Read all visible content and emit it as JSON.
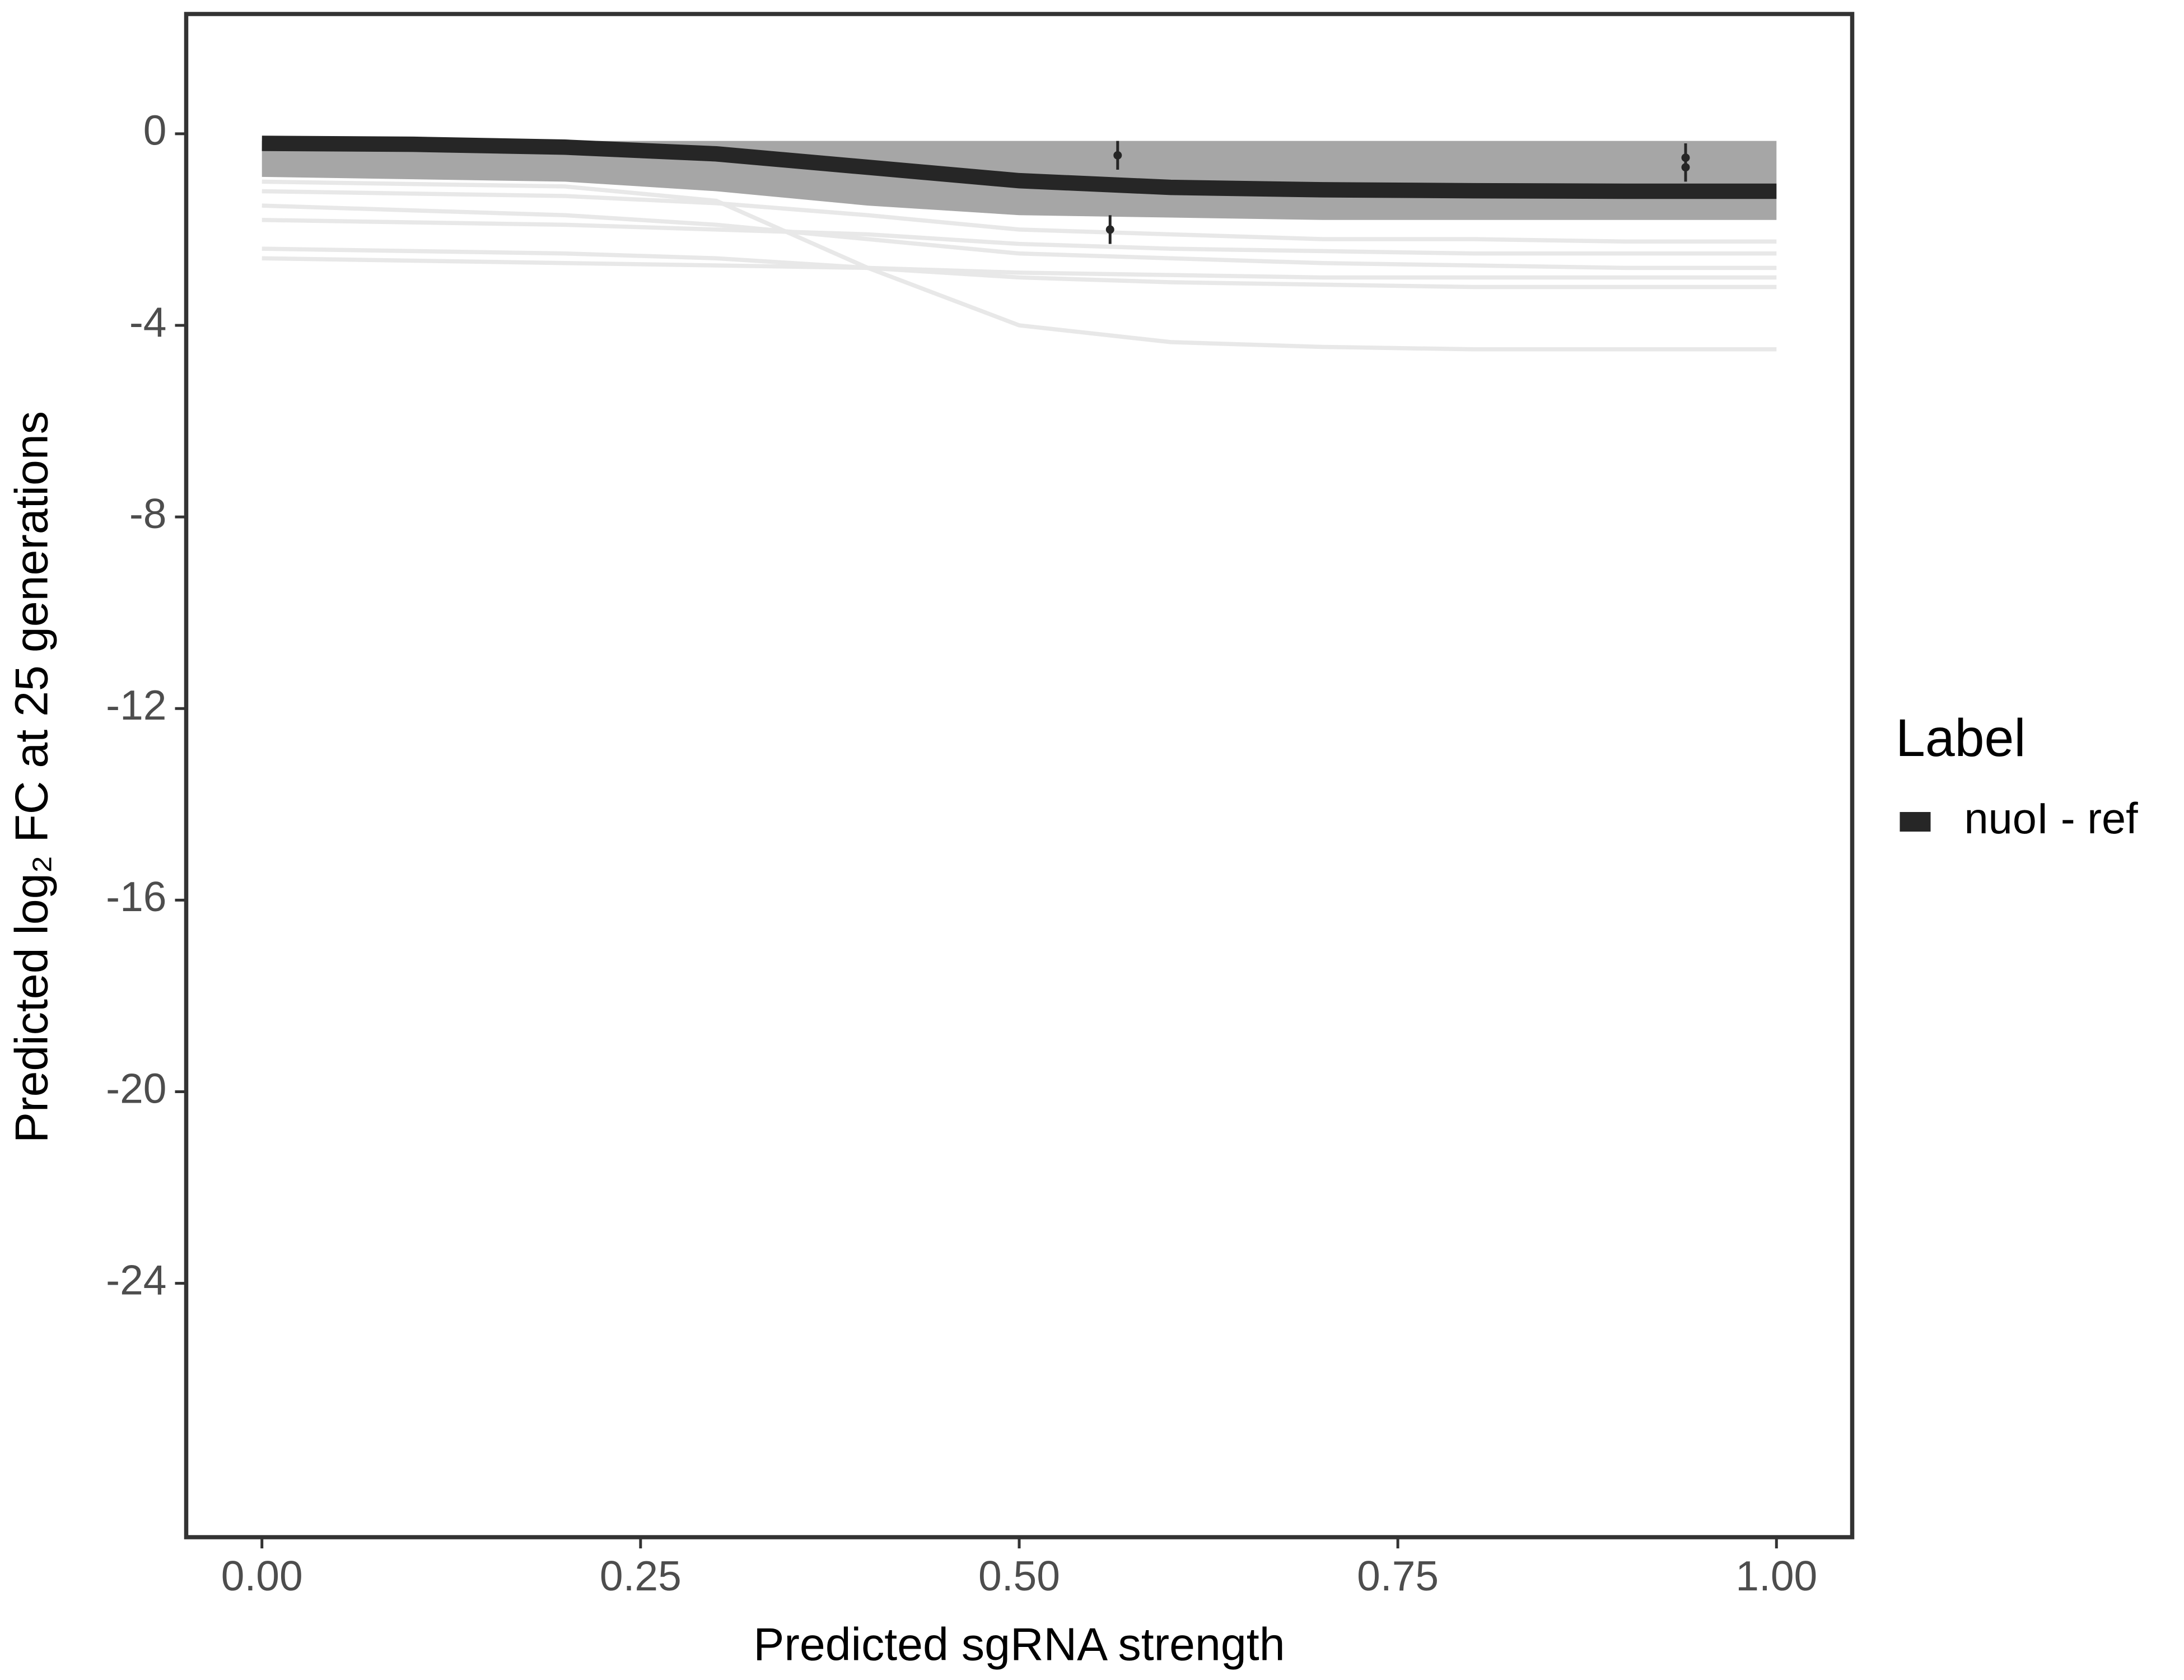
{
  "chart_data": {
    "type": "line",
    "x_label": "Predicted sgRNA strength",
    "y_label": "Predicted  log₂ FC at 25 generations",
    "legend_title": "Label",
    "legend_position": "right",
    "x": [
      0,
      0.1,
      0.2,
      0.3,
      0.4,
      0.5,
      0.6,
      0.7,
      0.8,
      0.9,
      1.0
    ],
    "series": [
      {
        "name": "nuoI - ref",
        "color": "#262626",
        "values": [
          -0.2,
          -0.22,
          -0.28,
          -0.42,
          -0.7,
          -0.98,
          -1.12,
          -1.17,
          -1.19,
          -1.2,
          -1.2
        ]
      }
    ],
    "ribbon": {
      "color": "#a6a6a6",
      "lower": [
        -0.9,
        -0.95,
        -1.0,
        -1.2,
        -1.5,
        -1.7,
        -1.75,
        -1.8,
        -1.8,
        -1.8,
        -1.8
      ],
      "upper": [
        -0.15,
        -0.15,
        -0.15,
        -0.15,
        -0.15,
        -0.15,
        -0.15,
        -0.15,
        -0.15,
        -0.15,
        -0.15
      ]
    },
    "draws": {
      "color": "#e8e8e8",
      "lines": [
        [
          -1.5,
          -1.6,
          -1.7,
          -1.9,
          -2.2,
          -2.5,
          -2.6,
          -2.7,
          -2.75,
          -2.8,
          -2.8
        ],
        [
          -2.4,
          -2.45,
          -2.5,
          -2.6,
          -2.8,
          -3.0,
          -3.1,
          -3.15,
          -3.2,
          -3.2,
          -3.2
        ],
        [
          -2.6,
          -2.65,
          -2.7,
          -2.75,
          -2.8,
          -2.9,
          -2.95,
          -3.0,
          -3.0,
          -3.0,
          -3.0
        ],
        [
          -1.0,
          -1.05,
          -1.1,
          -1.4,
          -2.8,
          -4.0,
          -4.35,
          -4.45,
          -4.5,
          -4.5,
          -4.5
        ],
        [
          -1.8,
          -1.85,
          -1.9,
          -2.0,
          -2.1,
          -2.3,
          -2.4,
          -2.45,
          -2.5,
          -2.5,
          -2.5
        ],
        [
          -1.2,
          -1.25,
          -1.3,
          -1.45,
          -1.7,
          -2.0,
          -2.1,
          -2.2,
          -2.2,
          -2.25,
          -2.25
        ]
      ]
    },
    "points": {
      "color": "#262626",
      "x": [
        0.565,
        0.56,
        0.94,
        0.94
      ],
      "y": [
        -0.45,
        -2.0,
        -0.5,
        -0.7
      ],
      "error": [
        0.3,
        0.3,
        0.3,
        0.3
      ]
    },
    "xlim": [
      -0.05,
      1.05
    ],
    "ylim": [
      -29.3,
      2.5
    ],
    "xticks": [
      {
        "value": 0,
        "label": "0.00"
      },
      {
        "value": 0.25,
        "label": "0.25"
      },
      {
        "value": 0.5,
        "label": "0.50"
      },
      {
        "value": 0.75,
        "label": "0.75"
      },
      {
        "value": 1,
        "label": "1.00"
      }
    ],
    "yticks": [
      0,
      -4,
      -8,
      -12,
      -16,
      -20,
      -24
    ],
    "grid": false
  }
}
